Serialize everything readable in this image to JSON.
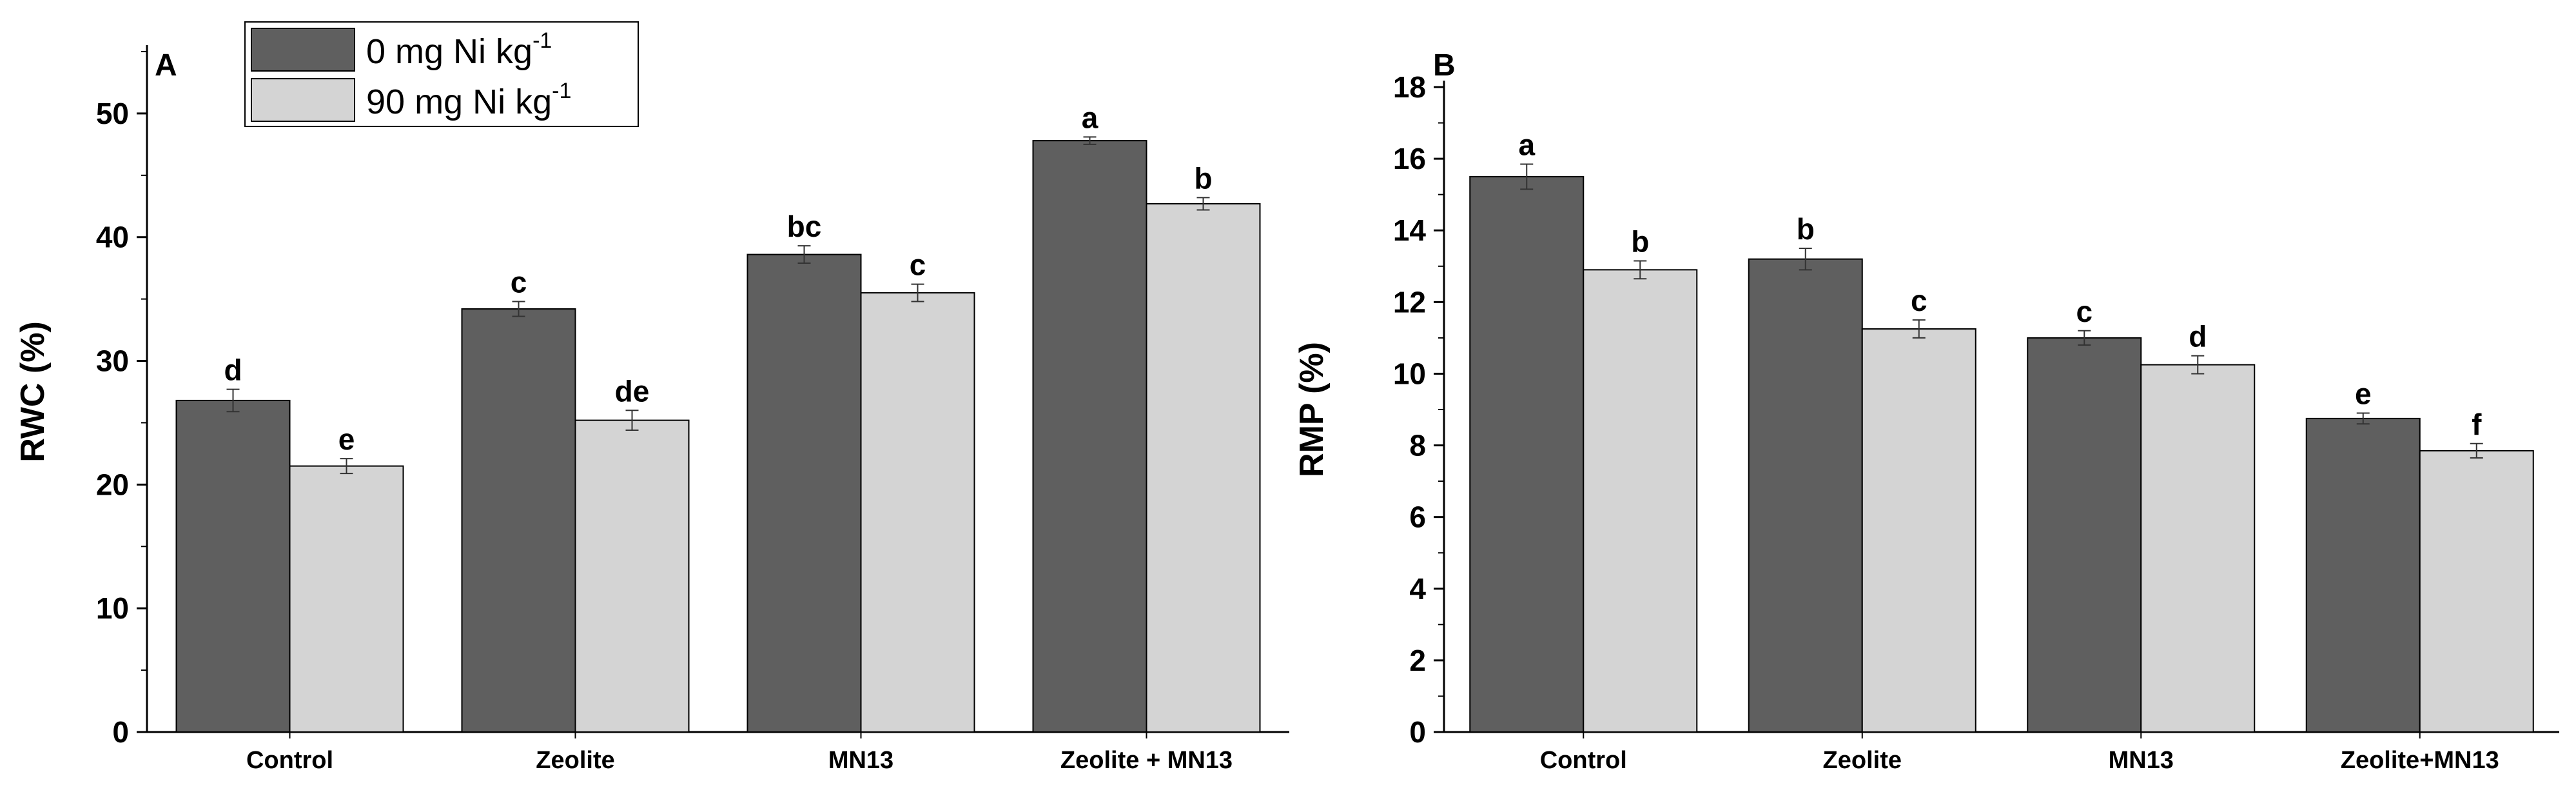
{
  "legend": {
    "items": [
      {
        "label": "0 mg Ni kg",
        "sup": "-1",
        "color": "#5f5f5f"
      },
      {
        "label": "90 mg Ni kg",
        "sup": "-1",
        "color": "#d4d4d4"
      }
    ]
  },
  "chart_data": [
    {
      "type": "bar",
      "panel": "A",
      "ylabel": "RWC (%)",
      "ylim": [
        0,
        55
      ],
      "yticks": [
        0,
        10,
        20,
        30,
        40,
        50
      ],
      "categories": [
        "Control",
        "Zeolite",
        "MN13",
        "Zeolite + MN13"
      ],
      "series": [
        {
          "name": "0 mg Ni kg-1",
          "values": [
            26.8,
            34.2,
            38.6,
            47.8
          ],
          "errors": [
            0.9,
            0.6,
            0.7,
            0.3
          ],
          "letters": [
            "d",
            "c",
            "bc",
            "a"
          ]
        },
        {
          "name": "90 mg Ni kg-1",
          "values": [
            21.5,
            25.2,
            35.5,
            42.7
          ],
          "errors": [
            0.6,
            0.8,
            0.7,
            0.5
          ],
          "letters": [
            "e",
            "de",
            "c",
            "b"
          ]
        }
      ]
    },
    {
      "type": "bar",
      "panel": "B",
      "ylabel": "RMP (%)",
      "ylim": [
        0,
        18
      ],
      "yticks": [
        0,
        2,
        4,
        6,
        8,
        10,
        12,
        14,
        16,
        18
      ],
      "categories": [
        "Control",
        "Zeolite",
        "MN13",
        "Zeolite+MN13"
      ],
      "series": [
        {
          "name": "0 mg Ni kg-1",
          "values": [
            15.5,
            13.2,
            11.0,
            8.75
          ],
          "errors": [
            0.35,
            0.3,
            0.2,
            0.15
          ],
          "letters": [
            "a",
            "b",
            "c",
            "e"
          ]
        },
        {
          "name": "90 mg Ni kg-1",
          "values": [
            12.9,
            11.25,
            10.25,
            7.85
          ],
          "errors": [
            0.25,
            0.25,
            0.25,
            0.2
          ],
          "letters": [
            "b",
            "c",
            "d",
            "f"
          ]
        }
      ]
    }
  ]
}
